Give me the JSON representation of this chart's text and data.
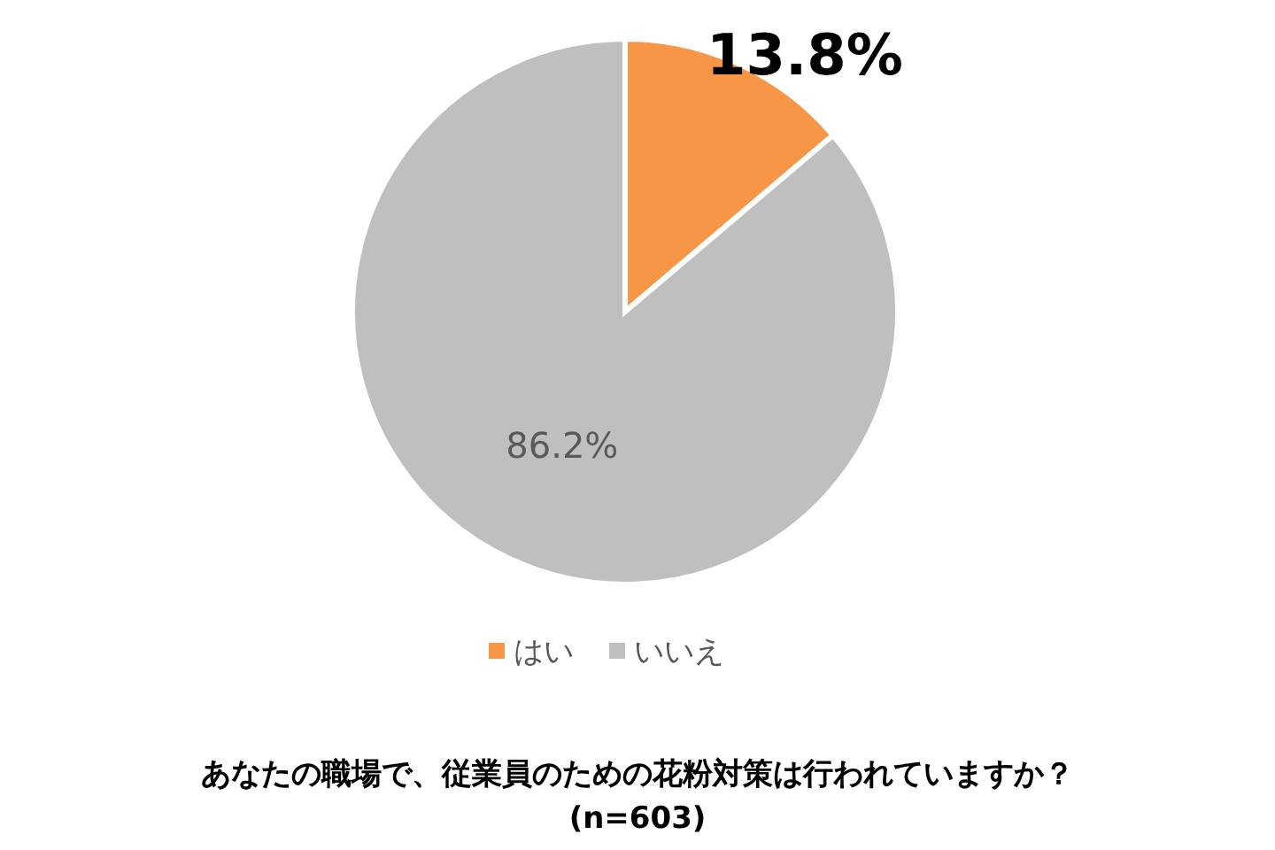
{
  "chart_data": {
    "type": "pie",
    "categories": [
      "はい",
      "いいえ"
    ],
    "values": [
      13.8,
      86.2
    ],
    "colors": [
      "#f79646",
      "#bfbfbf"
    ],
    "value_labels": [
      "13.8%",
      "86.2%"
    ],
    "legend": "bottom",
    "annotations": [
      "あなたの職場で、従業員のための花粉対策は行われていますか？",
      "(n=603)"
    ]
  }
}
